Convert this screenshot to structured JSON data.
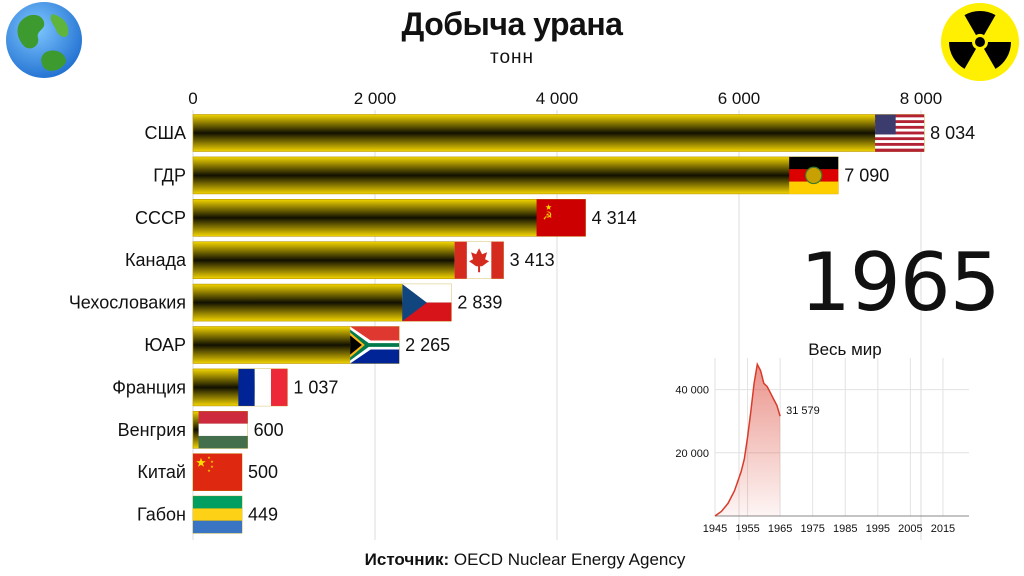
{
  "title": "Добыча урана",
  "subtitle": "тонн",
  "year": "1965",
  "source_label": "Источник:",
  "source_text": " OECD Nuclear Energy Agency",
  "inset_title": "Весь мир",
  "logos": {
    "left": "earth-globe",
    "right": "radiation-symbol"
  },
  "colors": {
    "bar_dark": "#111000",
    "bar_light": "#f2d400",
    "inset_line": "#d93b2b"
  },
  "chart_data": [
    {
      "type": "bar",
      "orientation": "horizontal",
      "categories": [
        "США",
        "ГДР",
        "СССР",
        "Канада",
        "Чехословакия",
        "ЮАР",
        "Франция",
        "Венгрия",
        "Китай",
        "Габон"
      ],
      "values": [
        8034,
        7090,
        4314,
        3413,
        2839,
        2265,
        1037,
        600,
        500,
        449
      ],
      "value_labels": [
        "8 034",
        "7 090",
        "4 314",
        "3 413",
        "2 839",
        "2 265",
        "1 037",
        "600",
        "500",
        "449"
      ],
      "flags": [
        "usa",
        "gdr",
        "ussr",
        "canada",
        "czechoslovakia",
        "south-africa",
        "france",
        "hungary",
        "china",
        "gabon"
      ],
      "xlim": [
        0,
        8000
      ],
      "xticks": [
        0,
        2000,
        4000,
        6000,
        8000
      ],
      "xtick_labels": [
        "0",
        "2 000",
        "4 000",
        "6 000",
        "8 000"
      ],
      "axis_position": "top",
      "grid": true
    },
    {
      "type": "area",
      "title": "Весь мир",
      "x": [
        1945,
        1947,
        1949,
        1951,
        1953,
        1954,
        1955,
        1956,
        1957,
        1958,
        1959,
        1960,
        1961,
        1962,
        1963,
        1964,
        1965
      ],
      "y": [
        0,
        1500,
        4000,
        8000,
        14000,
        18000,
        25000,
        33000,
        42000,
        48000,
        46000,
        42000,
        41000,
        39000,
        37000,
        35000,
        31579
      ],
      "last_value_label": "31 579",
      "xlim": [
        1945,
        2023
      ],
      "ylim": [
        0,
        50000
      ],
      "xticks": [
        1945,
        1955,
        1965,
        1975,
        1985,
        1995,
        2005,
        2015
      ],
      "xtick_labels": [
        "1945",
        "1955",
        "1965",
        "1975",
        "1985",
        "1995",
        "2005",
        "2015"
      ],
      "yticks": [
        20000,
        40000
      ],
      "ytick_labels": [
        "20 000",
        "40 000"
      ],
      "grid": true
    }
  ]
}
